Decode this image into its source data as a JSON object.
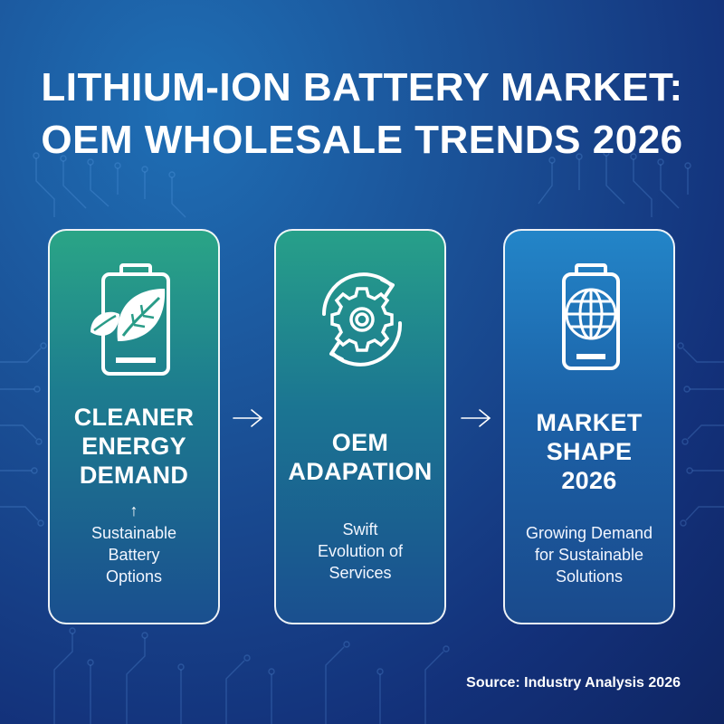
{
  "title": {
    "line1": "LITHIUM-ION BATTERY MARKET:",
    "line2": "OEM WHOLESALE TRENDS 2026"
  },
  "cards": [
    {
      "icon": "battery-leaf-icon",
      "title_lines": [
        "CLEANER",
        "ENERGY",
        "DEMAND"
      ],
      "indicator": "↑",
      "desc_lines": [
        "Sustainable",
        "Battery",
        "Options"
      ]
    },
    {
      "icon": "cycle-gear-icon",
      "title_lines": [
        "OEM",
        "ADAPATION"
      ],
      "desc_lines": [
        "Swift",
        "Evolution of",
        "Services"
      ]
    },
    {
      "icon": "battery-globe-icon",
      "title_lines": [
        "MARKET",
        "SHAPE",
        "2026"
      ],
      "desc_lines": [
        "Growing Demand",
        "for Sustainable",
        "Solutions"
      ]
    }
  ],
  "source": "Source: Industry Analysis 2026",
  "colors": {
    "background": "#1a4f95",
    "card_green": "#2aa586",
    "card_blue": "#2385c8",
    "text": "#ffffff"
  }
}
